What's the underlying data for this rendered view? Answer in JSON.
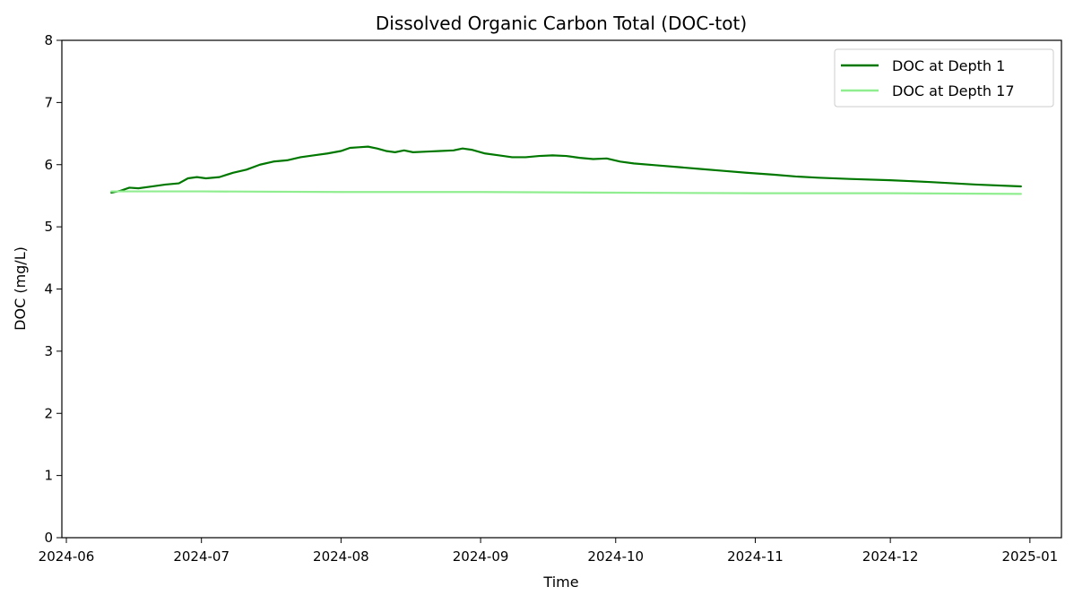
{
  "chart_data": {
    "type": "line",
    "title": "Dissolved Organic Carbon Total (DOC-tot)",
    "xlabel": "Time",
    "ylabel": "DOC (mg/L)",
    "ylim": [
      0,
      8
    ],
    "yticks": [
      "0",
      "1",
      "2",
      "3",
      "4",
      "5",
      "6",
      "7",
      "8"
    ],
    "xlim": [
      "2024-05-31",
      "2025-01-08"
    ],
    "xticks": [
      "2024-06",
      "2024-07",
      "2024-08",
      "2024-09",
      "2024-10",
      "2024-11",
      "2024-12",
      "2025-01"
    ],
    "legend_position": "top-right",
    "grid": false,
    "series": [
      {
        "name": "DOC at Depth 1",
        "color": "#007800",
        "x": [
          "2024-06-11",
          "2024-06-13",
          "2024-06-15",
          "2024-06-17",
          "2024-06-20",
          "2024-06-23",
          "2024-06-26",
          "2024-06-28",
          "2024-06-30",
          "2024-07-02",
          "2024-07-05",
          "2024-07-08",
          "2024-07-11",
          "2024-07-14",
          "2024-07-17",
          "2024-07-20",
          "2024-07-23",
          "2024-07-26",
          "2024-07-29",
          "2024-08-01",
          "2024-08-03",
          "2024-08-05",
          "2024-08-07",
          "2024-08-09",
          "2024-08-11",
          "2024-08-13",
          "2024-08-15",
          "2024-08-17",
          "2024-08-20",
          "2024-08-23",
          "2024-08-26",
          "2024-08-28",
          "2024-08-30",
          "2024-09-02",
          "2024-09-05",
          "2024-09-08",
          "2024-09-11",
          "2024-09-14",
          "2024-09-17",
          "2024-09-20",
          "2024-09-23",
          "2024-09-26",
          "2024-09-29",
          "2024-10-02",
          "2024-10-05",
          "2024-10-10",
          "2024-10-15",
          "2024-10-20",
          "2024-10-25",
          "2024-10-30",
          "2024-11-05",
          "2024-11-10",
          "2024-11-15",
          "2024-11-22",
          "2024-12-01",
          "2024-12-10",
          "2024-12-20",
          "2024-12-30"
        ],
        "y": [
          5.55,
          5.58,
          5.63,
          5.62,
          5.65,
          5.68,
          5.7,
          5.78,
          5.8,
          5.78,
          5.8,
          5.87,
          5.92,
          6.0,
          6.05,
          6.07,
          6.12,
          6.15,
          6.18,
          6.22,
          6.27,
          6.28,
          6.29,
          6.26,
          6.22,
          6.2,
          6.23,
          6.2,
          6.21,
          6.22,
          6.23,
          6.26,
          6.24,
          6.18,
          6.15,
          6.12,
          6.12,
          6.14,
          6.15,
          6.14,
          6.11,
          6.09,
          6.1,
          6.05,
          6.02,
          5.99,
          5.96,
          5.93,
          5.9,
          5.87,
          5.84,
          5.81,
          5.79,
          5.77,
          5.75,
          5.72,
          5.68,
          5.65
        ]
      },
      {
        "name": "DOC at Depth 17",
        "color": "#90ee90",
        "x": [
          "2024-06-11",
          "2024-07-01",
          "2024-08-01",
          "2024-09-01",
          "2024-10-01",
          "2024-11-01",
          "2024-12-01",
          "2024-12-30"
        ],
        "y": [
          5.57,
          5.57,
          5.56,
          5.56,
          5.55,
          5.54,
          5.54,
          5.53
        ]
      }
    ]
  }
}
